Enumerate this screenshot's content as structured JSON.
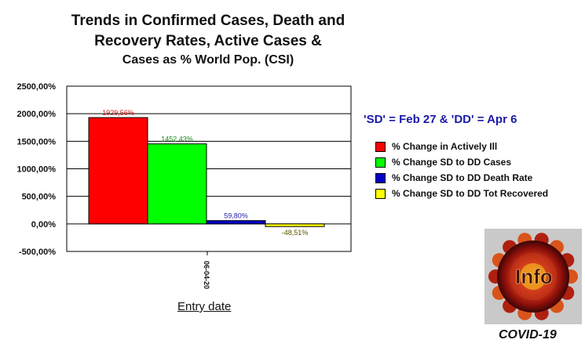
{
  "chart_data": {
    "type": "bar",
    "title_lines": [
      "Trends in Confirmed Cases, Death and",
      "Recovery Rates, Active Cases &",
      "Cases as % World Pop. (CSI)"
    ],
    "xlabel": "Entry date",
    "categories": [
      "06-04-20"
    ],
    "ylim": [
      -500,
      2500
    ],
    "yticks": [
      2500,
      2000,
      1500,
      1000,
      500,
      0,
      -500
    ],
    "ytick_labels": [
      "2500,00%",
      "2000,00%",
      "1500,00%",
      "1000,00%",
      "500,00%",
      "0,00%",
      "-500,00%"
    ],
    "grid": true,
    "legend_position": "right",
    "series": [
      {
        "name": "% Change in Actively Ill",
        "value": 1929.56,
        "label": "1929,56%",
        "color": "#ff0000",
        "label_color": "#d01010"
      },
      {
        "name": "% Change SD to DD Cases",
        "value": 1452.43,
        "label": "1452,43%",
        "color": "#00ff00",
        "label_color": "#1a8a1a"
      },
      {
        "name": "% Change SD to DD Death Rate",
        "value": 59.8,
        "label": "59,80%",
        "color": "#0000c8",
        "label_color": "#1a1aa8"
      },
      {
        "name": "% Change SD to DD Tot Recovered",
        "value": -48.51,
        "label": "-48,51%",
        "color": "#ffff00",
        "label_color": "#555500"
      }
    ]
  },
  "note": "'SD' = Feb 27 & 'DD' = Apr 6",
  "logo": {
    "text": "Info",
    "caption": "COVID-19"
  }
}
